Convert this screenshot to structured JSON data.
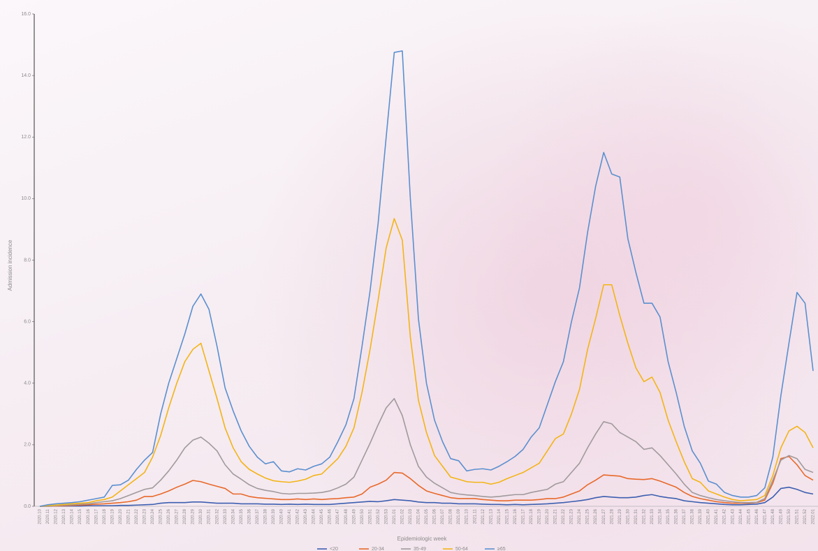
{
  "chart_data": {
    "type": "line",
    "x_label": "Epidemiologic week",
    "y_label": "Admission incidence",
    "categories": [
      "2020.10",
      "2020.11",
      "2020.12",
      "2020.13",
      "2020.14",
      "2020.15",
      "2020.16",
      "2020.17",
      "2020.18",
      "2020.19",
      "2020.20",
      "2020.21",
      "2020.22",
      "2020.23",
      "2020.24",
      "2020.25",
      "2020.26",
      "2020.27",
      "2020.28",
      "2020.29",
      "2020.30",
      "2020.31",
      "2020.32",
      "2020.33",
      "2020.34",
      "2020.35",
      "2020.36",
      "2020.37",
      "2020.38",
      "2020.39",
      "2020.40",
      "2020.41",
      "2020.42",
      "2020.43",
      "2020.44",
      "2020.45",
      "2020.46",
      "2020.47",
      "2020.48",
      "2020.49",
      "2020.50",
      "2020.51",
      "2020.52",
      "2020.53",
      "2021.01",
      "2021.02",
      "2021.03",
      "2021.04",
      "2021.05",
      "2021.06",
      "2021.07",
      "2021.08",
      "2021.09",
      "2021.10",
      "2021.11",
      "2021.12",
      "2021.13",
      "2021.14",
      "2021.15",
      "2021.16",
      "2021.17",
      "2021.18",
      "2021.19",
      "2021.20",
      "2021.21",
      "2021.22",
      "2021.23",
      "2021.24",
      "2021.25",
      "2021.26",
      "2021.27",
      "2021.28",
      "2021.29",
      "2021.30",
      "2021.31",
      "2021.32",
      "2021.33",
      "2021.34",
      "2021.35",
      "2021.36",
      "2021.37",
      "2021.38",
      "2021.39",
      "2021.40",
      "2021.41",
      "2021.42",
      "2021.43",
      "2021.44",
      "2021.45",
      "2021.46",
      "2021.47",
      "2021.48",
      "2021.49",
      "2021.50",
      "2021.51",
      "2021.52",
      "2022.01"
    ],
    "ylim": [
      0,
      16
    ],
    "yticks": [
      {
        "value": 0,
        "label": "0.0"
      },
      {
        "value": 2,
        "label": "2.0"
      },
      {
        "value": 4,
        "label": "4.0"
      },
      {
        "value": 6,
        "label": "6.0"
      },
      {
        "value": 8,
        "label": "8.0"
      },
      {
        "value": 10,
        "label": "10.0"
      },
      {
        "value": 12,
        "label": "12.0"
      },
      {
        "value": 14,
        "label": "14.0"
      },
      {
        "value": 16,
        "label": "16.0"
      }
    ],
    "series": [
      {
        "name": "<20",
        "color": "#3d5fb0",
        "values": [
          0,
          0,
          0.01,
          0.01,
          0.01,
          0.01,
          0.02,
          0.02,
          0.02,
          0.02,
          0.03,
          0.03,
          0.04,
          0.05,
          0.06,
          0.1,
          0.12,
          0.12,
          0.12,
          0.14,
          0.14,
          0.12,
          0.1,
          0.1,
          0.1,
          0.08,
          0.08,
          0.08,
          0.07,
          0.07,
          0.06,
          0.07,
          0.06,
          0.07,
          0.06,
          0.06,
          0.06,
          0.08,
          0.1,
          0.12,
          0.14,
          0.16,
          0.15,
          0.18,
          0.22,
          0.2,
          0.18,
          0.14,
          0.12,
          0.12,
          0.1,
          0.1,
          0.08,
          0.08,
          0.08,
          0.07,
          0.06,
          0.06,
          0.05,
          0.06,
          0.05,
          0.06,
          0.07,
          0.08,
          0.1,
          0.12,
          0.15,
          0.18,
          0.22,
          0.28,
          0.32,
          0.3,
          0.28,
          0.28,
          0.3,
          0.35,
          0.38,
          0.32,
          0.28,
          0.25,
          0.18,
          0.15,
          0.12,
          0.1,
          0.08,
          0.06,
          0.05,
          0.05,
          0.06,
          0.07,
          0.12,
          0.3,
          0.58,
          0.62,
          0.55,
          0.45,
          0.4
        ]
      },
      {
        "name": "20-34",
        "color": "#e8692a",
        "values": [
          0,
          0.01,
          0.01,
          0.02,
          0.03,
          0.04,
          0.05,
          0.07,
          0.08,
          0.1,
          0.12,
          0.15,
          0.2,
          0.32,
          0.32,
          0.4,
          0.5,
          0.62,
          0.72,
          0.84,
          0.8,
          0.72,
          0.65,
          0.58,
          0.4,
          0.4,
          0.32,
          0.28,
          0.26,
          0.24,
          0.22,
          0.22,
          0.24,
          0.22,
          0.24,
          0.22,
          0.24,
          0.25,
          0.28,
          0.3,
          0.4,
          0.62,
          0.72,
          0.85,
          1.1,
          1.08,
          0.9,
          0.68,
          0.5,
          0.42,
          0.35,
          0.28,
          0.25,
          0.25,
          0.25,
          0.22,
          0.2,
          0.18,
          0.18,
          0.2,
          0.2,
          0.2,
          0.22,
          0.25,
          0.25,
          0.3,
          0.4,
          0.5,
          0.7,
          0.85,
          1.02,
          1.0,
          0.98,
          0.9,
          0.88,
          0.87,
          0.9,
          0.82,
          0.72,
          0.62,
          0.45,
          0.32,
          0.25,
          0.2,
          0.15,
          0.12,
          0.1,
          0.1,
          0.1,
          0.12,
          0.2,
          0.75,
          1.55,
          1.62,
          1.35,
          1.0,
          0.85
        ]
      },
      {
        "name": "35-49",
        "color": "#a09a9c",
        "values": [
          0,
          0.01,
          0.02,
          0.04,
          0.05,
          0.07,
          0.08,
          0.12,
          0.15,
          0.18,
          0.25,
          0.35,
          0.45,
          0.55,
          0.6,
          0.85,
          1.15,
          1.5,
          1.9,
          2.15,
          2.25,
          2.05,
          1.8,
          1.35,
          1.05,
          0.88,
          0.7,
          0.58,
          0.52,
          0.48,
          0.42,
          0.4,
          0.42,
          0.42,
          0.43,
          0.45,
          0.5,
          0.6,
          0.72,
          0.95,
          1.5,
          2.05,
          2.65,
          3.2,
          3.5,
          2.95,
          2.0,
          1.3,
          0.95,
          0.75,
          0.6,
          0.45,
          0.4,
          0.37,
          0.35,
          0.32,
          0.3,
          0.32,
          0.35,
          0.38,
          0.38,
          0.45,
          0.5,
          0.55,
          0.72,
          0.8,
          1.1,
          1.4,
          1.9,
          2.35,
          2.75,
          2.68,
          2.4,
          2.25,
          2.1,
          1.85,
          1.9,
          1.65,
          1.35,
          1.05,
          0.72,
          0.45,
          0.35,
          0.28,
          0.22,
          0.18,
          0.15,
          0.12,
          0.12,
          0.13,
          0.25,
          0.85,
          1.5,
          1.65,
          1.55,
          1.2,
          1.1
        ]
      },
      {
        "name": "50-64",
        "color": "#f3b416",
        "values": [
          0,
          0.02,
          0.04,
          0.06,
          0.08,
          0.1,
          0.12,
          0.18,
          0.22,
          0.3,
          0.5,
          0.7,
          0.9,
          1.1,
          1.6,
          2.3,
          3.2,
          4.0,
          4.7,
          5.1,
          5.3,
          4.4,
          3.5,
          2.55,
          1.9,
          1.45,
          1.2,
          1.05,
          0.92,
          0.83,
          0.8,
          0.78,
          0.82,
          0.88,
          1.0,
          1.05,
          1.3,
          1.55,
          1.95,
          2.55,
          3.7,
          5.1,
          6.7,
          8.4,
          9.35,
          8.65,
          5.5,
          3.45,
          2.4,
          1.65,
          1.3,
          0.95,
          0.88,
          0.8,
          0.78,
          0.78,
          0.72,
          0.78,
          0.9,
          1.0,
          1.1,
          1.25,
          1.4,
          1.8,
          2.2,
          2.35,
          3.0,
          3.8,
          5.1,
          6.1,
          7.2,
          7.2,
          6.2,
          5.3,
          4.5,
          4.05,
          4.2,
          3.7,
          2.8,
          2.1,
          1.45,
          0.9,
          0.78,
          0.5,
          0.4,
          0.3,
          0.22,
          0.18,
          0.2,
          0.22,
          0.35,
          1.0,
          1.9,
          2.45,
          2.6,
          2.4,
          1.9
        ]
      },
      {
        "name": "≥65",
        "color": "#5b8fcf",
        "values": [
          0,
          0.05,
          0.08,
          0.1,
          0.12,
          0.15,
          0.2,
          0.25,
          0.3,
          0.68,
          0.7,
          0.85,
          1.2,
          1.5,
          1.75,
          3.0,
          4.0,
          4.8,
          5.6,
          6.5,
          6.9,
          6.4,
          5.2,
          3.85,
          3.1,
          2.45,
          1.95,
          1.6,
          1.38,
          1.45,
          1.15,
          1.12,
          1.22,
          1.18,
          1.3,
          1.38,
          1.6,
          2.1,
          2.65,
          3.5,
          5.2,
          7.0,
          9.2,
          12.0,
          14.75,
          14.8,
          10.0,
          6.1,
          4.0,
          2.8,
          2.1,
          1.55,
          1.48,
          1.15,
          1.2,
          1.22,
          1.18,
          1.3,
          1.45,
          1.62,
          1.85,
          2.25,
          2.55,
          3.3,
          4.05,
          4.7,
          6.0,
          7.1,
          8.9,
          10.4,
          11.5,
          10.8,
          10.7,
          8.7,
          7.6,
          6.6,
          6.6,
          6.15,
          4.7,
          3.7,
          2.6,
          1.8,
          1.4,
          0.82,
          0.72,
          0.45,
          0.35,
          0.3,
          0.3,
          0.35,
          0.6,
          1.6,
          3.6,
          5.3,
          6.95,
          6.6,
          4.4
        ]
      }
    ]
  }
}
